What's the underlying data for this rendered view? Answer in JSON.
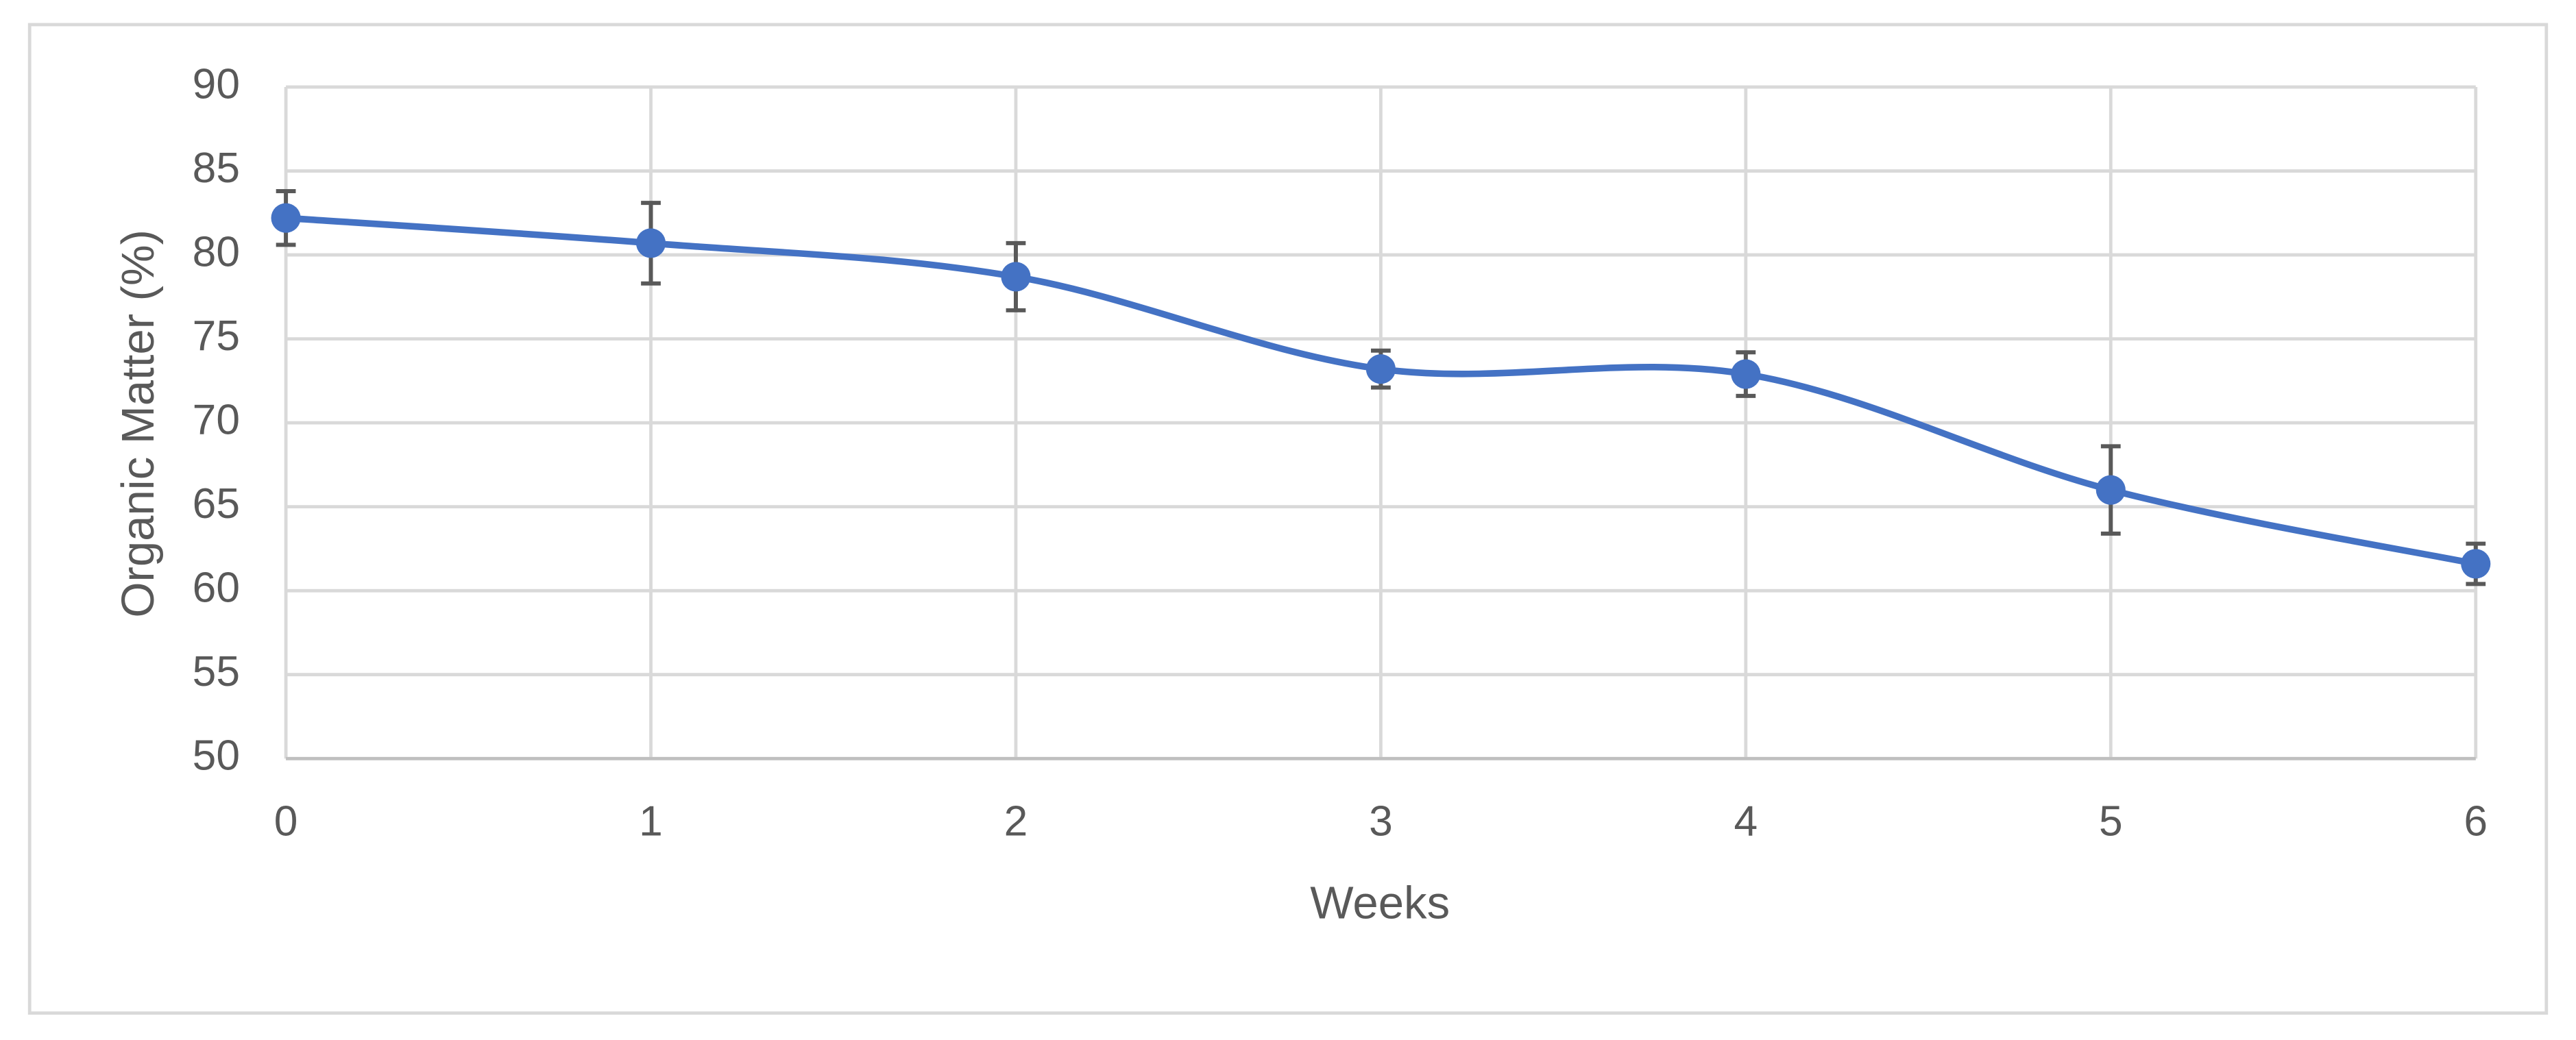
{
  "chart_data": {
    "type": "line",
    "x_label": "Weeks",
    "y_label": "Organic Matter (%)",
    "x": [
      0,
      1,
      2,
      3,
      4,
      5,
      6
    ],
    "values": [
      82.2,
      80.7,
      78.7,
      73.2,
      72.9,
      66.0,
      61.6
    ],
    "errors": [
      1.6,
      2.4,
      2.0,
      1.1,
      1.3,
      2.6,
      1.2
    ],
    "color": "#4472c4",
    "error_color": "#595959",
    "smooth": true,
    "grid": true,
    "xlim": [
      0,
      6
    ],
    "xticks": [
      0,
      1,
      2,
      3,
      4,
      5,
      6
    ],
    "ylim": [
      50,
      90
    ],
    "yticks": [
      50,
      55,
      60,
      65,
      70,
      75,
      80,
      85,
      90
    ]
  }
}
